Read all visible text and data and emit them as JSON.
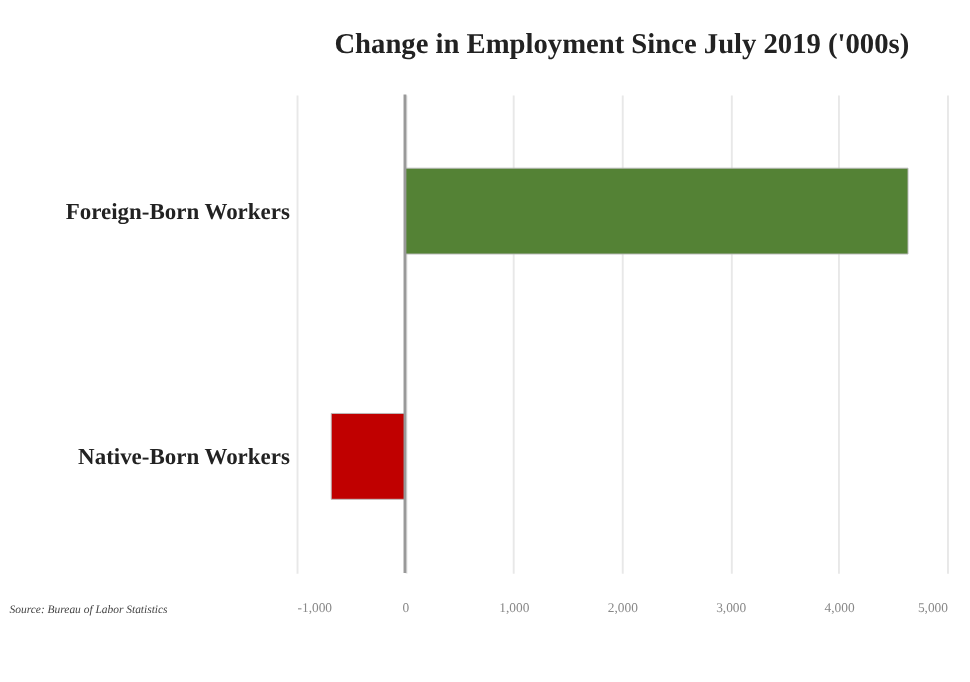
{
  "chart_data": {
    "type": "bar",
    "orientation": "horizontal",
    "title": "Change in Employment Since July 2019 ('000s)",
    "categories": [
      "Foreign-Born Workers",
      "Native-Born Workers"
    ],
    "values": [
      4640,
      -680
    ],
    "colors": [
      "#548235",
      "#c00000"
    ],
    "xlim": [
      -1000,
      5000
    ],
    "xticks": [
      {
        "value": -1000,
        "label": "-1,000"
      },
      0,
      {
        "value": 1000,
        "label": "1,000"
      },
      {
        "value": 2000,
        "label": "2,000"
      },
      {
        "value": 3000,
        "label": "3,000"
      },
      {
        "value": 4000,
        "label": "4,000"
      },
      {
        "value": 5000,
        "label": "5,000"
      }
    ],
    "grid": "x",
    "annotations": [
      "Source: Bureau of Labor Statistics"
    ]
  }
}
